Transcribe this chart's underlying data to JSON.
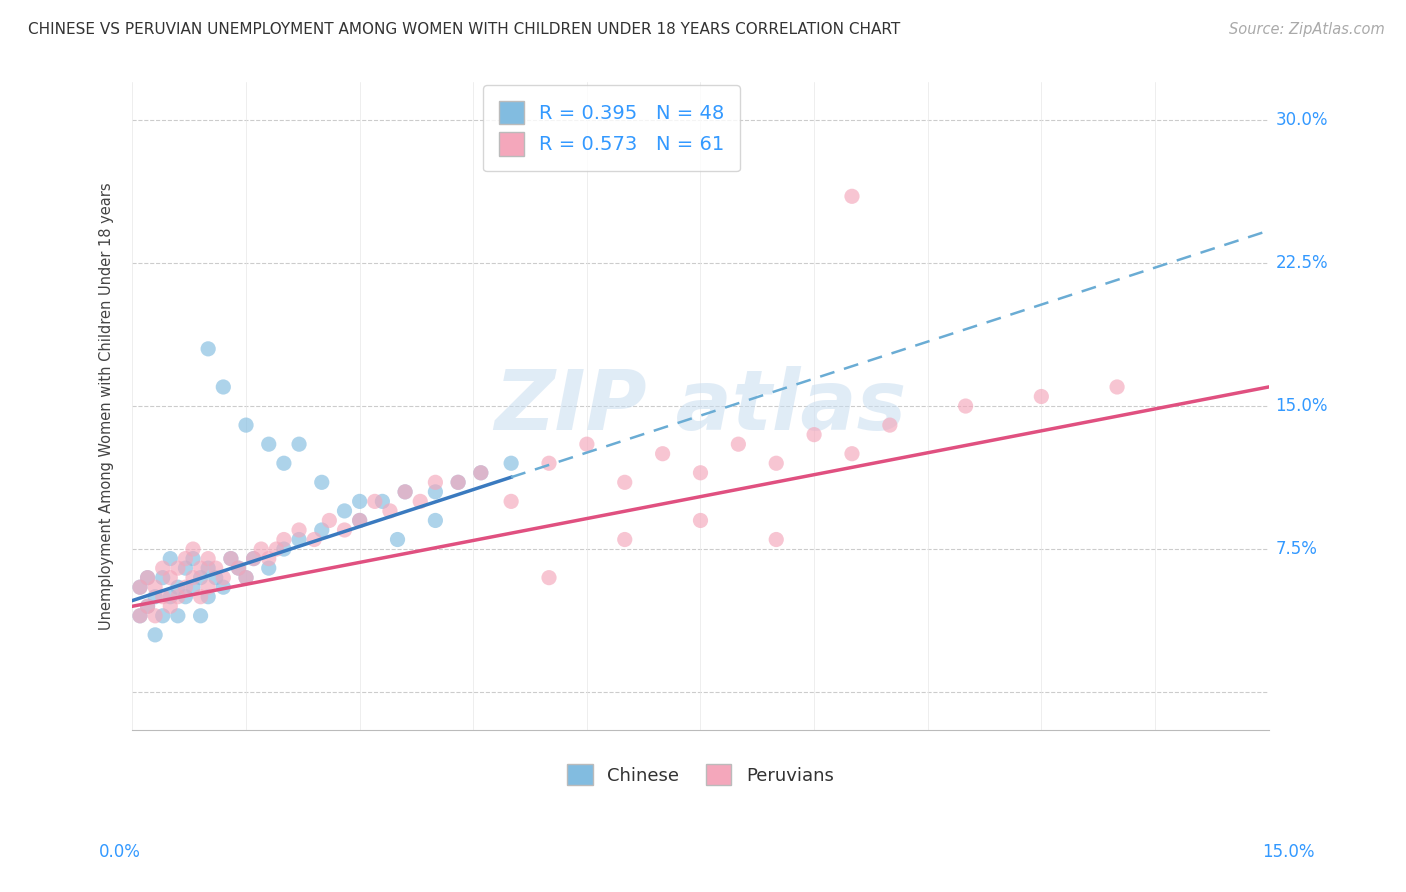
{
  "title": "CHINESE VS PERUVIAN UNEMPLOYMENT AMONG WOMEN WITH CHILDREN UNDER 18 YEARS CORRELATION CHART",
  "source": "Source: ZipAtlas.com",
  "ylabel": "Unemployment Among Women with Children Under 18 years",
  "ytick_vals": [
    0.0,
    0.075,
    0.15,
    0.225,
    0.3
  ],
  "ytick_labels": [
    "",
    "7.5%",
    "15.0%",
    "22.5%",
    "30.0%"
  ],
  "xtick_vals": [
    0.0,
    0.015,
    0.03,
    0.045,
    0.06,
    0.075,
    0.09,
    0.105,
    0.12,
    0.135,
    0.15
  ],
  "xlim": [
    0.0,
    0.15
  ],
  "ylim": [
    -0.02,
    0.32
  ],
  "chinese_R": "0.395",
  "chinese_N": "48",
  "peruvian_R": "0.573",
  "peruvian_N": "61",
  "chinese_color": "#82bce0",
  "peruvian_color": "#f4a7bb",
  "trend_chinese_solid_color": "#3a7abf",
  "trend_chinese_dash_color": "#6aacd4",
  "trend_peruvian_color": "#e05080",
  "label_color": "#3399ff",
  "grid_color": "#cccccc",
  "chinese_x": [
    0.001,
    0.001,
    0.002,
    0.002,
    0.003,
    0.003,
    0.004,
    0.004,
    0.005,
    0.005,
    0.006,
    0.006,
    0.007,
    0.007,
    0.008,
    0.008,
    0.009,
    0.009,
    0.01,
    0.01,
    0.011,
    0.012,
    0.013,
    0.014,
    0.015,
    0.016,
    0.018,
    0.02,
    0.022,
    0.025,
    0.028,
    0.03,
    0.033,
    0.036,
    0.04,
    0.043,
    0.046,
    0.05,
    0.01,
    0.012,
    0.015,
    0.018,
    0.02,
    0.022,
    0.025,
    0.03,
    0.035,
    0.04
  ],
  "chinese_y": [
    0.04,
    0.055,
    0.045,
    0.06,
    0.03,
    0.05,
    0.04,
    0.06,
    0.05,
    0.07,
    0.04,
    0.055,
    0.05,
    0.065,
    0.055,
    0.07,
    0.04,
    0.06,
    0.05,
    0.065,
    0.06,
    0.055,
    0.07,
    0.065,
    0.06,
    0.07,
    0.065,
    0.075,
    0.08,
    0.085,
    0.095,
    0.09,
    0.1,
    0.105,
    0.105,
    0.11,
    0.115,
    0.12,
    0.18,
    0.16,
    0.14,
    0.13,
    0.12,
    0.13,
    0.11,
    0.1,
    0.08,
    0.09
  ],
  "peruvian_x": [
    0.001,
    0.001,
    0.002,
    0.002,
    0.003,
    0.003,
    0.004,
    0.004,
    0.005,
    0.005,
    0.006,
    0.006,
    0.007,
    0.007,
    0.008,
    0.008,
    0.009,
    0.009,
    0.01,
    0.01,
    0.011,
    0.012,
    0.013,
    0.014,
    0.015,
    0.016,
    0.017,
    0.018,
    0.019,
    0.02,
    0.022,
    0.024,
    0.026,
    0.028,
    0.03,
    0.032,
    0.034,
    0.036,
    0.038,
    0.04,
    0.043,
    0.046,
    0.05,
    0.055,
    0.06,
    0.065,
    0.07,
    0.075,
    0.08,
    0.085,
    0.09,
    0.095,
    0.1,
    0.11,
    0.12,
    0.13,
    0.055,
    0.065,
    0.075,
    0.085,
    0.095
  ],
  "peruvian_y": [
    0.04,
    0.055,
    0.045,
    0.06,
    0.04,
    0.055,
    0.05,
    0.065,
    0.045,
    0.06,
    0.05,
    0.065,
    0.055,
    0.07,
    0.06,
    0.075,
    0.05,
    0.065,
    0.055,
    0.07,
    0.065,
    0.06,
    0.07,
    0.065,
    0.06,
    0.07,
    0.075,
    0.07,
    0.075,
    0.08,
    0.085,
    0.08,
    0.09,
    0.085,
    0.09,
    0.1,
    0.095,
    0.105,
    0.1,
    0.11,
    0.11,
    0.115,
    0.1,
    0.12,
    0.13,
    0.11,
    0.125,
    0.115,
    0.13,
    0.12,
    0.135,
    0.125,
    0.14,
    0.15,
    0.155,
    0.16,
    0.06,
    0.08,
    0.09,
    0.08,
    0.26
  ],
  "chinese_trend_x0": 0.0,
  "chinese_trend_y0": 0.048,
  "chinese_trend_x1": 0.075,
  "chinese_trend_y1": 0.145,
  "peruvian_trend_x0": 0.0,
  "peruvian_trend_y0": 0.045,
  "peruvian_trend_x1": 0.15,
  "peruvian_trend_y1": 0.16
}
